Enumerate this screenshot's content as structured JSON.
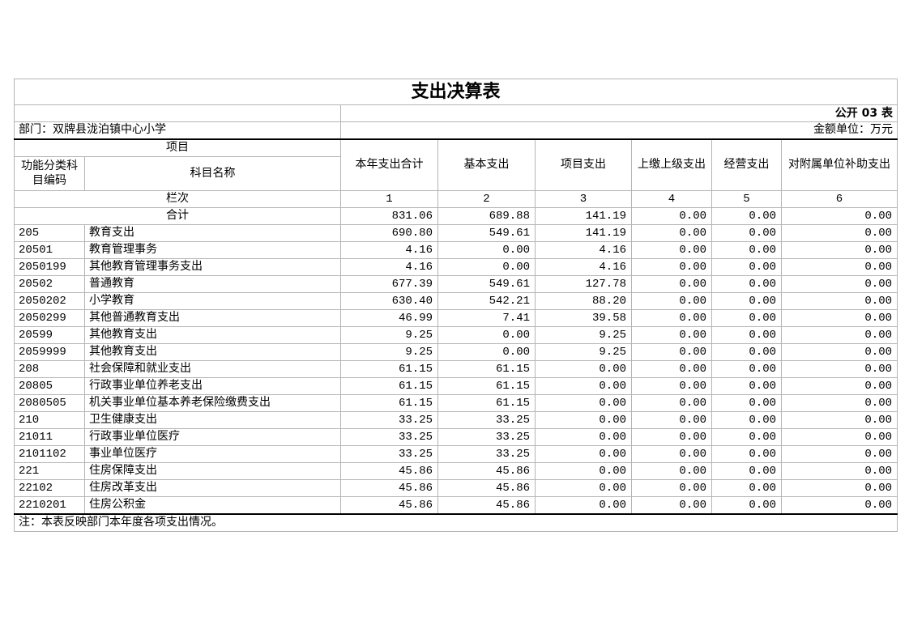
{
  "title": "支出决算表",
  "form_no": "公开 03 表",
  "department": "部门：双牌县泷泊镇中心小学",
  "unit": "金额单位：万元",
  "header": {
    "project": "项目",
    "code": "功能分类科目编码",
    "name": "科目名称",
    "columns": [
      "本年支出合计",
      "基本支出",
      "项目支出",
      "上缴上级支出",
      "经营支出",
      "对附属单位补助支出"
    ],
    "seq_label": "栏次",
    "seq": [
      "1",
      "2",
      "3",
      "4",
      "5",
      "6"
    ]
  },
  "total": {
    "label": "合计",
    "values": [
      "831.06",
      "689.88",
      "141.19",
      "0.00",
      "0.00",
      "0.00"
    ]
  },
  "rows": [
    {
      "code": "205",
      "name": "教育支出",
      "values": [
        "690.80",
        "549.61",
        "141.19",
        "0.00",
        "0.00",
        "0.00"
      ]
    },
    {
      "code": "20501",
      "name": "教育管理事务",
      "values": [
        "4.16",
        "0.00",
        "4.16",
        "0.00",
        "0.00",
        "0.00"
      ]
    },
    {
      "code": "2050199",
      "name": "其他教育管理事务支出",
      "values": [
        "4.16",
        "0.00",
        "4.16",
        "0.00",
        "0.00",
        "0.00"
      ]
    },
    {
      "code": "20502",
      "name": "普通教育",
      "values": [
        "677.39",
        "549.61",
        "127.78",
        "0.00",
        "0.00",
        "0.00"
      ]
    },
    {
      "code": "2050202",
      "name": "小学教育",
      "values": [
        "630.40",
        "542.21",
        "88.20",
        "0.00",
        "0.00",
        "0.00"
      ]
    },
    {
      "code": "2050299",
      "name": "其他普通教育支出",
      "values": [
        "46.99",
        "7.41",
        "39.58",
        "0.00",
        "0.00",
        "0.00"
      ]
    },
    {
      "code": "20599",
      "name": "其他教育支出",
      "values": [
        "9.25",
        "0.00",
        "9.25",
        "0.00",
        "0.00",
        "0.00"
      ]
    },
    {
      "code": "2059999",
      "name": "其他教育支出",
      "values": [
        "9.25",
        "0.00",
        "9.25",
        "0.00",
        "0.00",
        "0.00"
      ]
    },
    {
      "code": "208",
      "name": "社会保障和就业支出",
      "values": [
        "61.15",
        "61.15",
        "0.00",
        "0.00",
        "0.00",
        "0.00"
      ]
    },
    {
      "code": "20805",
      "name": "行政事业单位养老支出",
      "values": [
        "61.15",
        "61.15",
        "0.00",
        "0.00",
        "0.00",
        "0.00"
      ]
    },
    {
      "code": "2080505",
      "name": "机关事业单位基本养老保险缴费支出",
      "values": [
        "61.15",
        "61.15",
        "0.00",
        "0.00",
        "0.00",
        "0.00"
      ]
    },
    {
      "code": "210",
      "name": "卫生健康支出",
      "values": [
        "33.25",
        "33.25",
        "0.00",
        "0.00",
        "0.00",
        "0.00"
      ]
    },
    {
      "code": "21011",
      "name": "行政事业单位医疗",
      "values": [
        "33.25",
        "33.25",
        "0.00",
        "0.00",
        "0.00",
        "0.00"
      ]
    },
    {
      "code": "2101102",
      "name": "事业单位医疗",
      "values": [
        "33.25",
        "33.25",
        "0.00",
        "0.00",
        "0.00",
        "0.00"
      ]
    },
    {
      "code": "221",
      "name": "住房保障支出",
      "values": [
        "45.86",
        "45.86",
        "0.00",
        "0.00",
        "0.00",
        "0.00"
      ]
    },
    {
      "code": "22102",
      "name": "住房改革支出",
      "values": [
        "45.86",
        "45.86",
        "0.00",
        "0.00",
        "0.00",
        "0.00"
      ]
    },
    {
      "code": "2210201",
      "name": "住房公积金",
      "values": [
        "45.86",
        "45.86",
        "0.00",
        "0.00",
        "0.00",
        "0.00"
      ]
    }
  ],
  "note": "注：本表反映部门本年度各项支出情况。"
}
